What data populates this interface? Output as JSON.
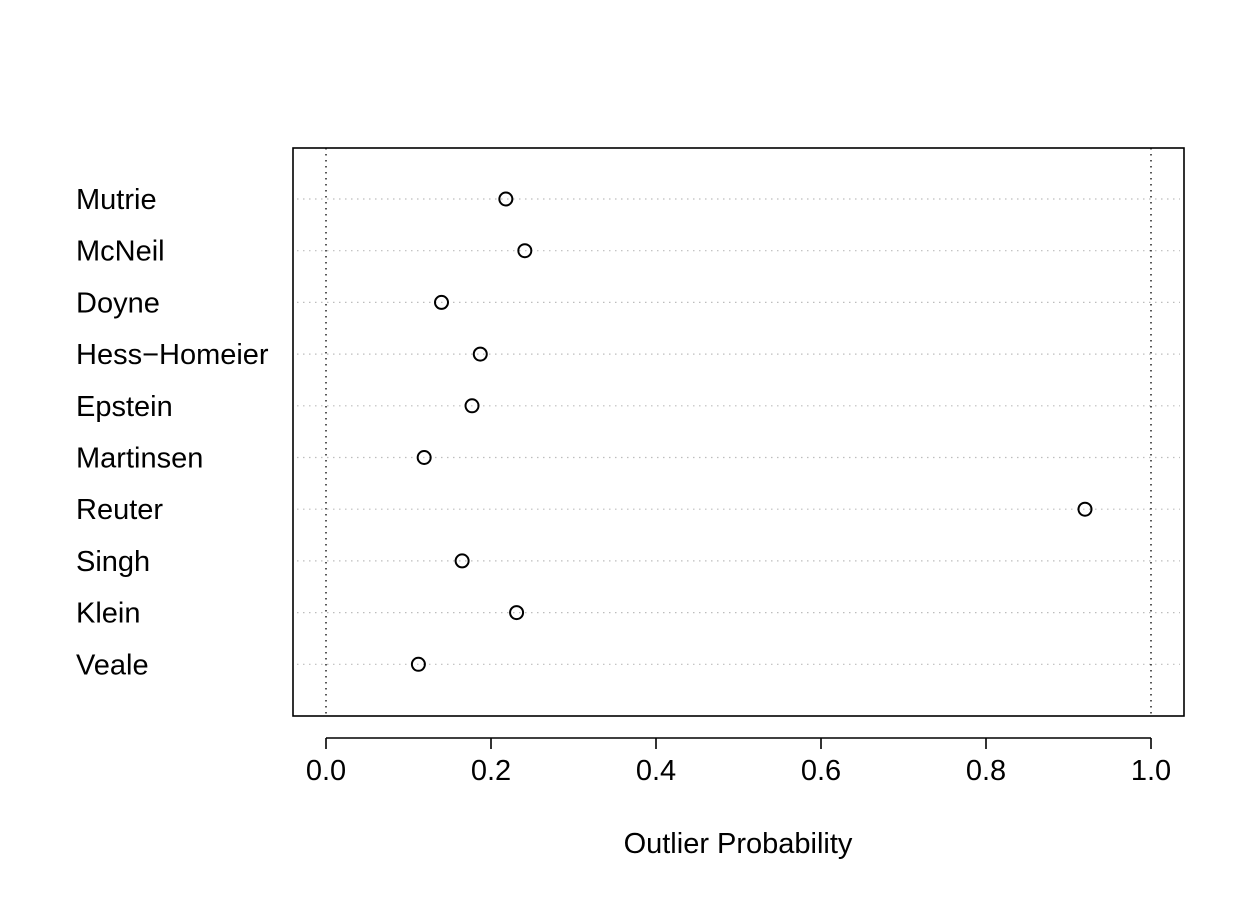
{
  "chart_data": {
    "type": "scatter",
    "title": "",
    "xlabel": "Outlier Probability",
    "ylabel": "",
    "xlim": [
      -0.04,
      1.04
    ],
    "x_ticks": [
      0.0,
      0.2,
      0.4,
      0.6,
      0.8,
      1.0
    ],
    "x_tick_labels": [
      "0.0",
      "0.2",
      "0.4",
      "0.6",
      "0.8",
      "1.0"
    ],
    "reference_lines_x": [
      0.0,
      1.0
    ],
    "grid": "horizontal dotted lines at each study",
    "legend": "none",
    "marker": "open-circle",
    "categories": [
      "Mutrie",
      "McNeil",
      "Doyne",
      "Hess−Homeier",
      "Epstein",
      "Martinsen",
      "Reuter",
      "Singh",
      "Klein",
      "Veale"
    ],
    "values": [
      0.218,
      0.241,
      0.14,
      0.187,
      0.177,
      0.119,
      0.92,
      0.165,
      0.231,
      0.112
    ]
  }
}
